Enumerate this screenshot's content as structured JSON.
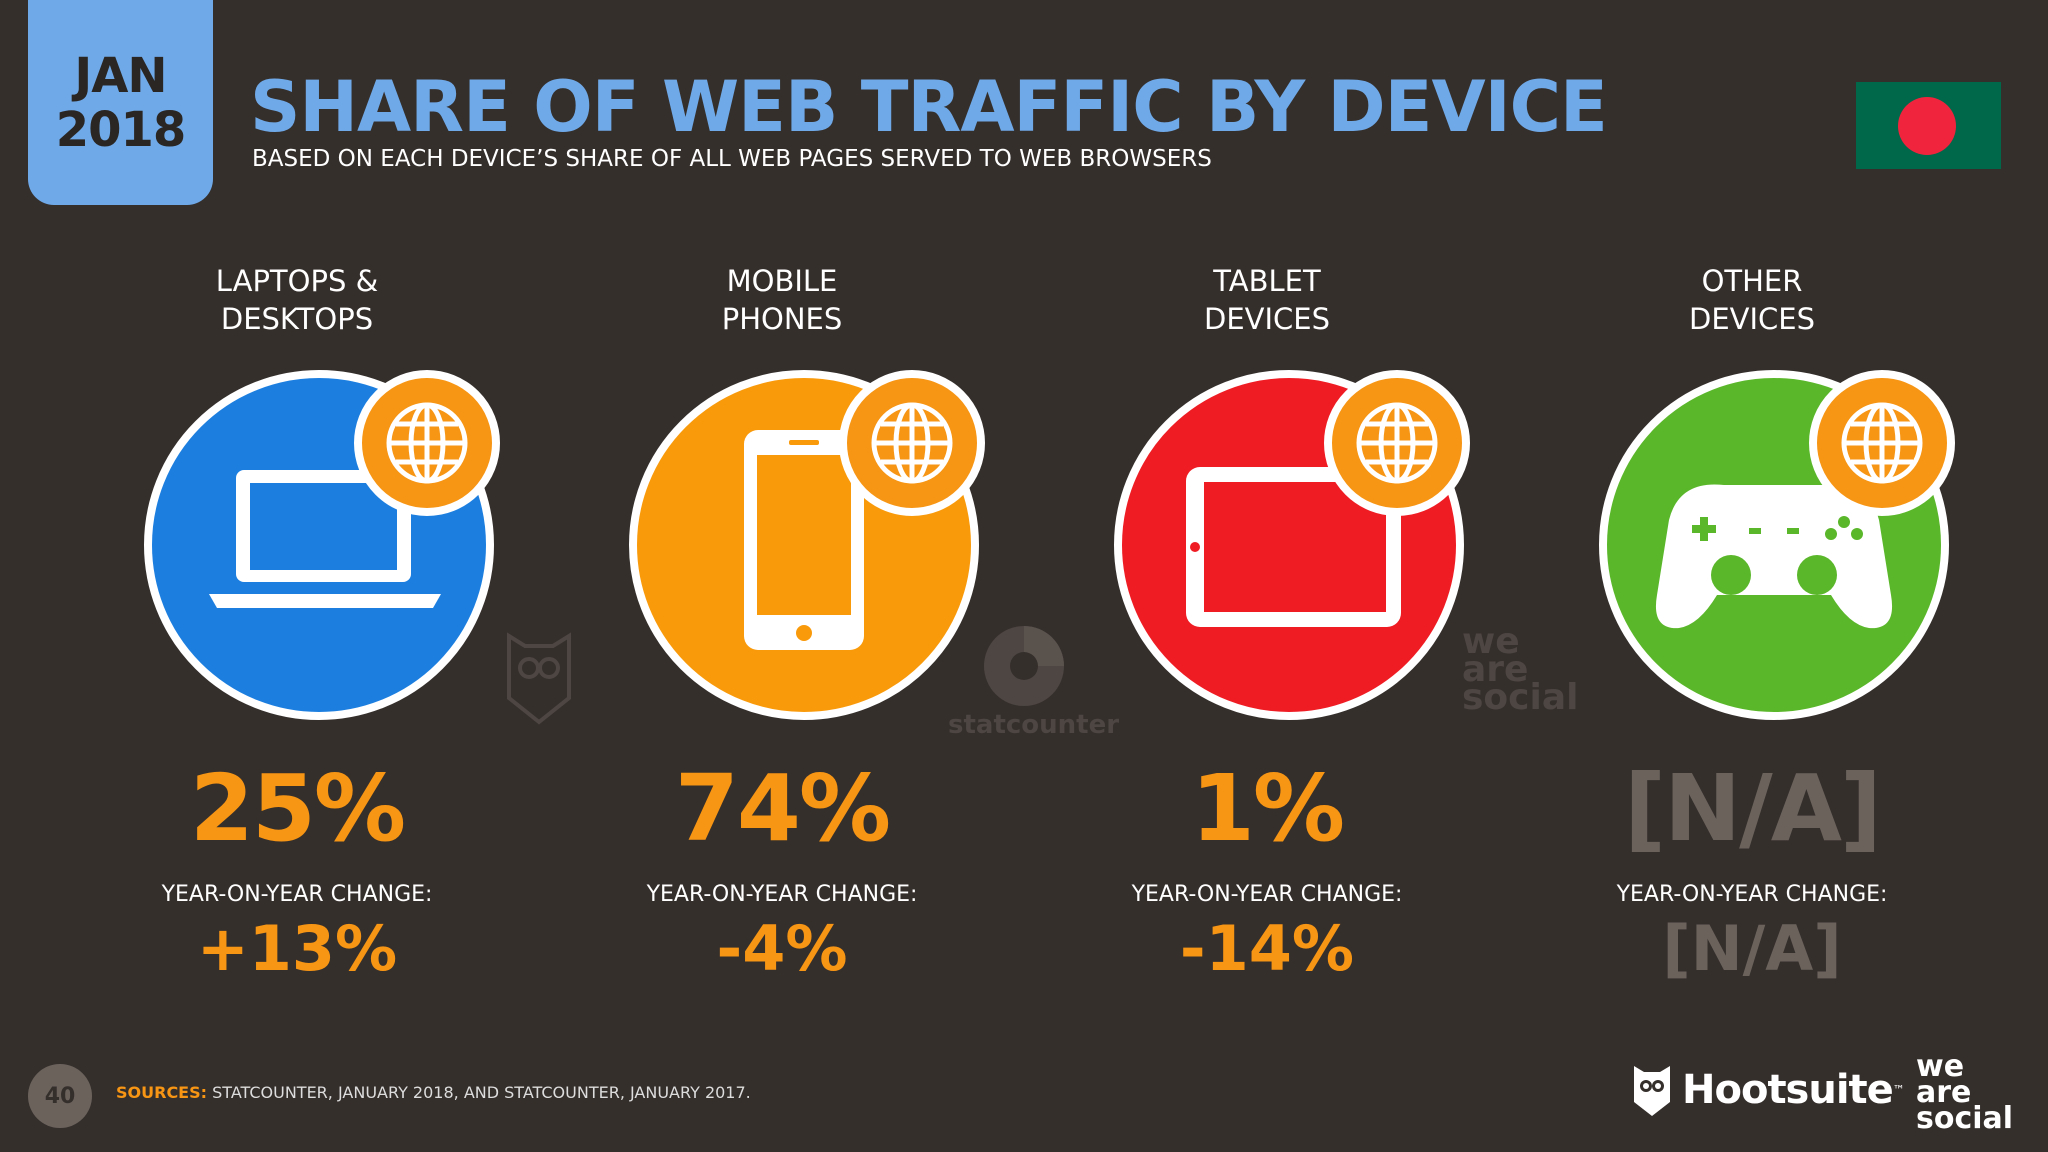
{
  "header": {
    "date_month": "JAN",
    "date_year": "2018",
    "title": "SHARE OF WEB TRAFFIC BY DEVICE",
    "subtitle": "BASED ON EACH DEVICE’S SHARE OF ALL WEB PAGES SERVED TO WEB BROWSERS"
  },
  "colors": {
    "accent": "#f79514",
    "title": "#6fa9e8",
    "background": "#352f2c",
    "flag_green": "#00684a",
    "flag_red": "#f0243d"
  },
  "devices": [
    {
      "label_line1": "LAPTOPS &",
      "label_line2": "DESKTOPS",
      "share": "25%",
      "yoy_label": "YEAR-ON-YEAR CHANGE:",
      "yoy": "+13%",
      "color": "#1c7fe0",
      "icon": "laptop-icon"
    },
    {
      "label_line1": "MOBILE",
      "label_line2": "PHONES",
      "share": "74%",
      "yoy_label": "YEAR-ON-YEAR CHANGE:",
      "yoy": "-4%",
      "color": "#f99a0b",
      "icon": "mobile-phone-icon"
    },
    {
      "label_line1": "TABLET",
      "label_line2": "DEVICES",
      "share": "1%",
      "yoy_label": "YEAR-ON-YEAR CHANGE:",
      "yoy": "-14%",
      "color": "#ef1c24",
      "icon": "tablet-icon"
    },
    {
      "label_line1": "OTHER",
      "label_line2": "DEVICES",
      "share": "[N/A]",
      "yoy_label": "YEAR-ON-YEAR CHANGE:",
      "yoy": "[N/A]",
      "color": "#5ab72a",
      "icon": "gamepad-icon"
    }
  ],
  "watermarks": {
    "statcounter": "statcounter",
    "was_1": "we",
    "was_2": "are",
    "was_3": "social"
  },
  "footer": {
    "page_number": "40",
    "sources_label": "SOURCES:",
    "sources_text": "STATCOUNTER, JANUARY 2018, AND STATCOUNTER, JANUARY 2017.",
    "hootsuite": "Hootsuite",
    "tm": "™",
    "was_1": "we",
    "was_2": "are",
    "was_3": "social"
  }
}
